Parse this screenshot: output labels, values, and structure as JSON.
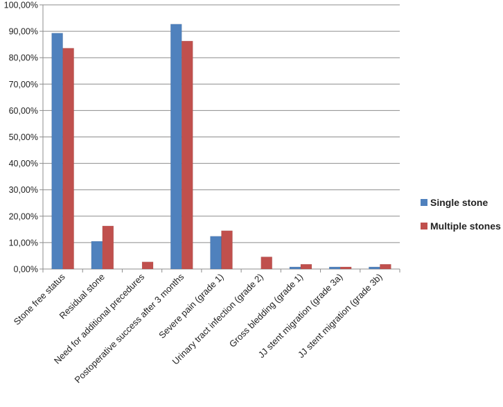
{
  "chart_data": {
    "type": "bar",
    "categories": [
      "Stone free status",
      "Residual stone",
      "Need for additional precedures",
      "Postoperative success after 3 months",
      "Severe pain (grade 1)",
      "Urinary tract infection (grade 2)",
      "Gross bledding (grade 1)",
      "JJ stent migration (grade 3a)",
      "JJ stent migration (grade 3b)"
    ],
    "series": [
      {
        "name": "Single stone",
        "color": "#4f81bd",
        "values": [
          89.3,
          10.5,
          0.0,
          92.7,
          12.4,
          0.0,
          0.8,
          0.8,
          0.8
        ]
      },
      {
        "name": "Multiple stones",
        "color": "#c0504d",
        "values": [
          83.6,
          16.3,
          2.7,
          86.3,
          14.5,
          4.6,
          1.8,
          0.8,
          1.8
        ]
      }
    ],
    "yticks": [
      "0,00%",
      "10,00%",
      "20,00%",
      "30,00%",
      "40,00%",
      "50,00%",
      "60,00%",
      "70,00%",
      "80,00%",
      "90,00%",
      "100,00%"
    ],
    "ylim": [
      0,
      100
    ],
    "grid": true,
    "legend": "right",
    "title": "",
    "xlabel": "",
    "ylabel": ""
  }
}
